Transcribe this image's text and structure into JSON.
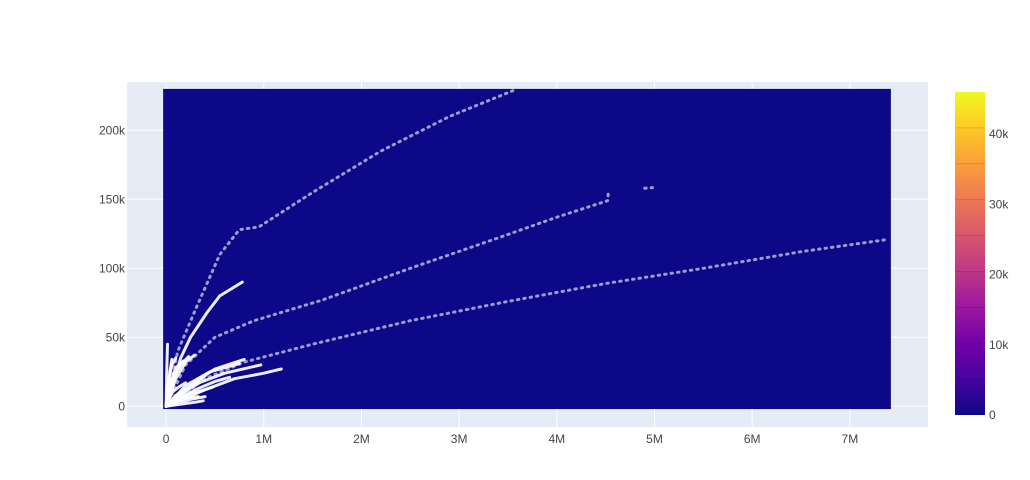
{
  "chart_data": {
    "type": "heatmap",
    "title": "",
    "xlabel": "",
    "ylabel": "",
    "xlim": [
      -400000,
      7800000
    ],
    "ylim": [
      -15000,
      235000
    ],
    "heatmap_extent": {
      "x": [
        -30000,
        7420000
      ],
      "y": [
        -2000,
        230000
      ]
    },
    "x_ticks": [
      0,
      1000000,
      2000000,
      3000000,
      4000000,
      5000000,
      6000000,
      7000000
    ],
    "x_tick_labels": [
      "0",
      "1M",
      "2M",
      "3M",
      "4M",
      "5M",
      "6M",
      "7M"
    ],
    "y_ticks": [
      0,
      50000,
      100000,
      150000,
      200000
    ],
    "y_tick_labels": [
      "0",
      "50k",
      "100k",
      "150k",
      "200k"
    ],
    "colorscale": [
      "#0d0887",
      "#46039f",
      "#7201a8",
      "#9c179e",
      "#bd3786",
      "#d8576b",
      "#ed7953",
      "#fb9f3a",
      "#fdca26",
      "#f0f921"
    ],
    "colorbar": {
      "range": [
        0,
        46000
      ],
      "ticks": [
        0,
        10000,
        20000,
        30000,
        40000
      ],
      "tick_labels": [
        "0",
        "10k",
        "20k",
        "30k",
        "40k"
      ]
    },
    "grid": true,
    "background_color": "#e5ecf6",
    "heatmap_color": "#0d0887",
    "trace_color": "#ffffff",
    "series": [
      {
        "style": "dotted",
        "points": [
          [
            0,
            0
          ],
          [
            120000,
            40000
          ],
          [
            300000,
            70000
          ],
          [
            550000,
            110000
          ],
          [
            750000,
            128000
          ],
          [
            950000,
            130000
          ],
          [
            1500000,
            155000
          ],
          [
            2200000,
            185000
          ],
          [
            2900000,
            210000
          ],
          [
            3560000,
            229000
          ]
        ]
      },
      {
        "style": "dotted",
        "points": [
          [
            0,
            0
          ],
          [
            200000,
            30000
          ],
          [
            500000,
            50000
          ],
          [
            900000,
            62000
          ],
          [
            1600000,
            77000
          ],
          [
            2500000,
            100000
          ],
          [
            3400000,
            122000
          ],
          [
            4000000,
            137000
          ],
          [
            4520000,
            149000
          ],
          [
            4530000,
            157000
          ]
        ]
      },
      {
        "style": "dotted",
        "points": [
          [
            4900000,
            158000
          ],
          [
            4980000,
            158500
          ]
        ]
      },
      {
        "style": "dotted",
        "points": [
          [
            0,
            0
          ],
          [
            400000,
            20000
          ],
          [
            800000,
            32000
          ],
          [
            1500000,
            45000
          ],
          [
            2500000,
            62000
          ],
          [
            3500000,
            76000
          ],
          [
            4500000,
            89000
          ],
          [
            5500000,
            100000
          ],
          [
            6500000,
            112000
          ],
          [
            7400000,
            121000
          ]
        ]
      },
      {
        "style": "solid",
        "points": [
          [
            0,
            0
          ],
          [
            150000,
            35000
          ],
          [
            250000,
            50000
          ],
          [
            420000,
            68000
          ],
          [
            550000,
            80000
          ],
          [
            780000,
            90000
          ]
        ]
      },
      {
        "style": "solid",
        "points": [
          [
            0,
            0
          ],
          [
            300000,
            18000
          ],
          [
            500000,
            27000
          ],
          [
            800000,
            34000
          ]
        ]
      },
      {
        "style": "solid",
        "points": [
          [
            0,
            0
          ],
          [
            400000,
            12000
          ],
          [
            700000,
            20000
          ],
          [
            1000000,
            24000
          ],
          [
            1180000,
            27000
          ]
        ]
      },
      {
        "style": "solid",
        "points": [
          [
            0,
            0
          ],
          [
            300000,
            16000
          ],
          [
            600000,
            24000
          ],
          [
            970000,
            30000
          ]
        ]
      },
      {
        "style": "solid",
        "points": [
          [
            0,
            0
          ],
          [
            200000,
            15000
          ],
          [
            450000,
            25000
          ],
          [
            750000,
            31000
          ]
        ]
      },
      {
        "style": "solid",
        "points": [
          [
            0,
            0
          ],
          [
            300000,
            12000
          ],
          [
            500000,
            18000
          ],
          [
            650000,
            21000
          ]
        ]
      },
      {
        "style": "solid",
        "points": [
          [
            0,
            0
          ],
          [
            100000,
            20000
          ],
          [
            200000,
            32000
          ],
          [
            290000,
            37000
          ]
        ]
      },
      {
        "style": "solid",
        "points": [
          [
            0,
            0
          ],
          [
            80000,
            22000
          ],
          [
            150000,
            30000
          ],
          [
            230000,
            36000
          ]
        ]
      },
      {
        "style": "solid",
        "points": [
          [
            0,
            0
          ],
          [
            50000,
            18000
          ],
          [
            100000,
            28000
          ],
          [
            180000,
            33000
          ]
        ]
      },
      {
        "style": "solid",
        "points": [
          [
            0,
            0
          ],
          [
            30000,
            20000
          ],
          [
            60000,
            30000
          ],
          [
            100000,
            35000
          ]
        ]
      },
      {
        "style": "solid",
        "points": [
          [
            0,
            0
          ],
          [
            20000,
            15000
          ],
          [
            40000,
            25000
          ],
          [
            60000,
            34000
          ]
        ]
      },
      {
        "style": "solid",
        "points": [
          [
            0,
            0
          ],
          [
            5000,
            20000
          ],
          [
            10000,
            35000
          ],
          [
            15000,
            45000
          ]
        ]
      },
      {
        "style": "solid",
        "points": [
          [
            0,
            0
          ],
          [
            200000,
            8000
          ],
          [
            350000,
            11000
          ],
          [
            480000,
            14000
          ]
        ]
      },
      {
        "style": "solid",
        "points": [
          [
            0,
            0
          ],
          [
            250000,
            5000
          ],
          [
            400000,
            7000
          ]
        ]
      },
      {
        "style": "solid",
        "points": [
          [
            0,
            0
          ],
          [
            300000,
            3000
          ],
          [
            380000,
            4000
          ]
        ]
      },
      {
        "style": "solid",
        "points": [
          [
            0,
            0
          ],
          [
            100000,
            8000
          ],
          [
            220000,
            12000
          ],
          [
            320000,
            16000
          ]
        ]
      },
      {
        "style": "solid",
        "points": [
          [
            0,
            0
          ],
          [
            150000,
            10000
          ],
          [
            280000,
            16000
          ],
          [
            400000,
            22000
          ]
        ]
      },
      {
        "style": "solid",
        "points": [
          [
            0,
            0
          ],
          [
            60000,
            10000
          ],
          [
            130000,
            14000
          ],
          [
            200000,
            17000
          ]
        ]
      },
      {
        "style": "solid",
        "points": [
          [
            0,
            0
          ],
          [
            90000,
            4000
          ],
          [
            200000,
            6000
          ],
          [
            330000,
            7000
          ]
        ]
      }
    ]
  }
}
